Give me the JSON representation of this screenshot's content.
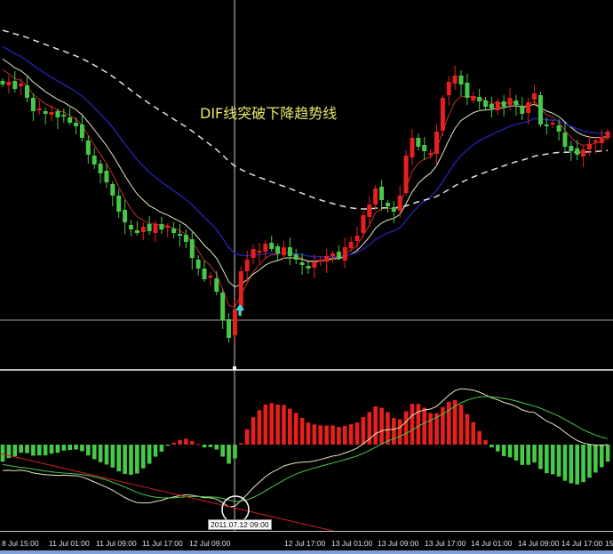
{
  "chart_data": {
    "type": "candlestick",
    "annotation": "DIF线突破下降趋势线",
    "up_color": "#e8201c",
    "down_color": "#48c848",
    "ma_colors": [
      "#c0302a",
      "#e8e8c0",
      "#2020a0",
      "#e0e0e0"
    ],
    "macd_line_colors": {
      "dif": "#e8e8c0",
      "dea": "#48c848"
    },
    "trendline_color": "#d02020",
    "closes": [
      315,
      318,
      310,
      316,
      300,
      285,
      288,
      282,
      284,
      278,
      280,
      272,
      268,
      255,
      236,
      225,
      215,
      205,
      190,
      172,
      160,
      152,
      148,
      155,
      150,
      158,
      152,
      156,
      148,
      145,
      138,
      120,
      108,
      96,
      100,
      82,
      50,
      30,
      62,
      105,
      118,
      130,
      128,
      136,
      130,
      125,
      132,
      122,
      118,
      112,
      108,
      115,
      118,
      122,
      125,
      120,
      132,
      138,
      145,
      168,
      180,
      198,
      185,
      178,
      172,
      190,
      235,
      255,
      245,
      240,
      238,
      262,
      300,
      318,
      325,
      315,
      300,
      302,
      296,
      290,
      288,
      296,
      290,
      300,
      292,
      282,
      295,
      305,
      270,
      268,
      272,
      262,
      245,
      240,
      236,
      242,
      248,
      252,
      256,
      262
    ],
    "ylim": [
      0,
      410
    ],
    "x_tick_labels": [
      "8 Jul 15:00",
      "11 Jul 01:00",
      "11 Jul 09:00",
      "11 Jul 17:00",
      "12 Jul 09:00",
      "12 Jul 17:00",
      "13 Jul 01:00",
      "13 Jul 09:00",
      "13 Jul 17:00",
      "14 Jul 01:00",
      "14 Jul 09:00",
      "14 Jul 17:00",
      "15"
    ],
    "crosshair_label": "2011.07.12 09:00",
    "indicator": "MACD"
  }
}
